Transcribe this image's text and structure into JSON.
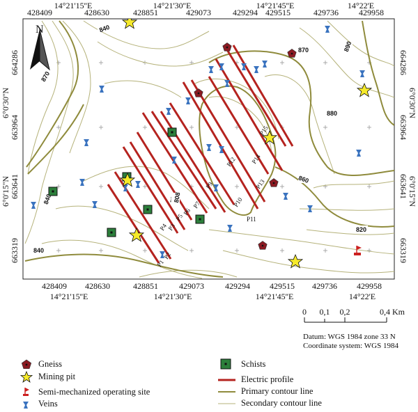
{
  "map": {
    "north_label": "N",
    "x_utm_ticks": [
      "428409",
      "428630",
      "428851",
      "429073",
      "429294",
      "429515",
      "429736",
      "429958"
    ],
    "y_utm_ticks": [
      "664286",
      "663964",
      "663641",
      "663319"
    ],
    "x_lon_ticks": [
      "14°21'15''E",
      "14°21'30''E",
      "14°21'45''E",
      "14°22'E"
    ],
    "y_lat_ticks": [
      "6°0'30''N",
      "6°0'15''N"
    ],
    "contour_labels": [
      "840",
      "870",
      "870",
      "890",
      "880",
      "860",
      "840",
      "820",
      "840",
      "808"
    ],
    "profile_labels": [
      "P1",
      "P2",
      "P3",
      "P4",
      "P5",
      "P6",
      "P7",
      "P8",
      "P9",
      "P10",
      "P11",
      "P12",
      "P13",
      "P14",
      "P15"
    ],
    "colors": {
      "primary_contour": "#8f8b3c",
      "secondary_contour": "#b5b27a",
      "profile": "#b5231f",
      "gneiss": "#8a1a22",
      "schist": "#2c7f3b",
      "mining_pit": "#f6ea2a",
      "vein": "#3a73bf",
      "operating_site": "#cc2020"
    }
  },
  "scale": {
    "ticks": [
      "0",
      "0,1",
      "0,2",
      "0,4 Km"
    ]
  },
  "datum": {
    "line1": "Datum: WGS 1984 zone 33 N",
    "line2": "Coordinate system: WGS 1984"
  },
  "legend": {
    "gneiss": "Gneiss",
    "mining_pit": "Mining pit",
    "operating_site": "Semi-mechanized operating site",
    "veins": "Veins",
    "schists": "Schists",
    "electric_profile": "Electric profile",
    "primary_contour": "Primary contour line",
    "secondary_contour": "Secondary contour line"
  }
}
